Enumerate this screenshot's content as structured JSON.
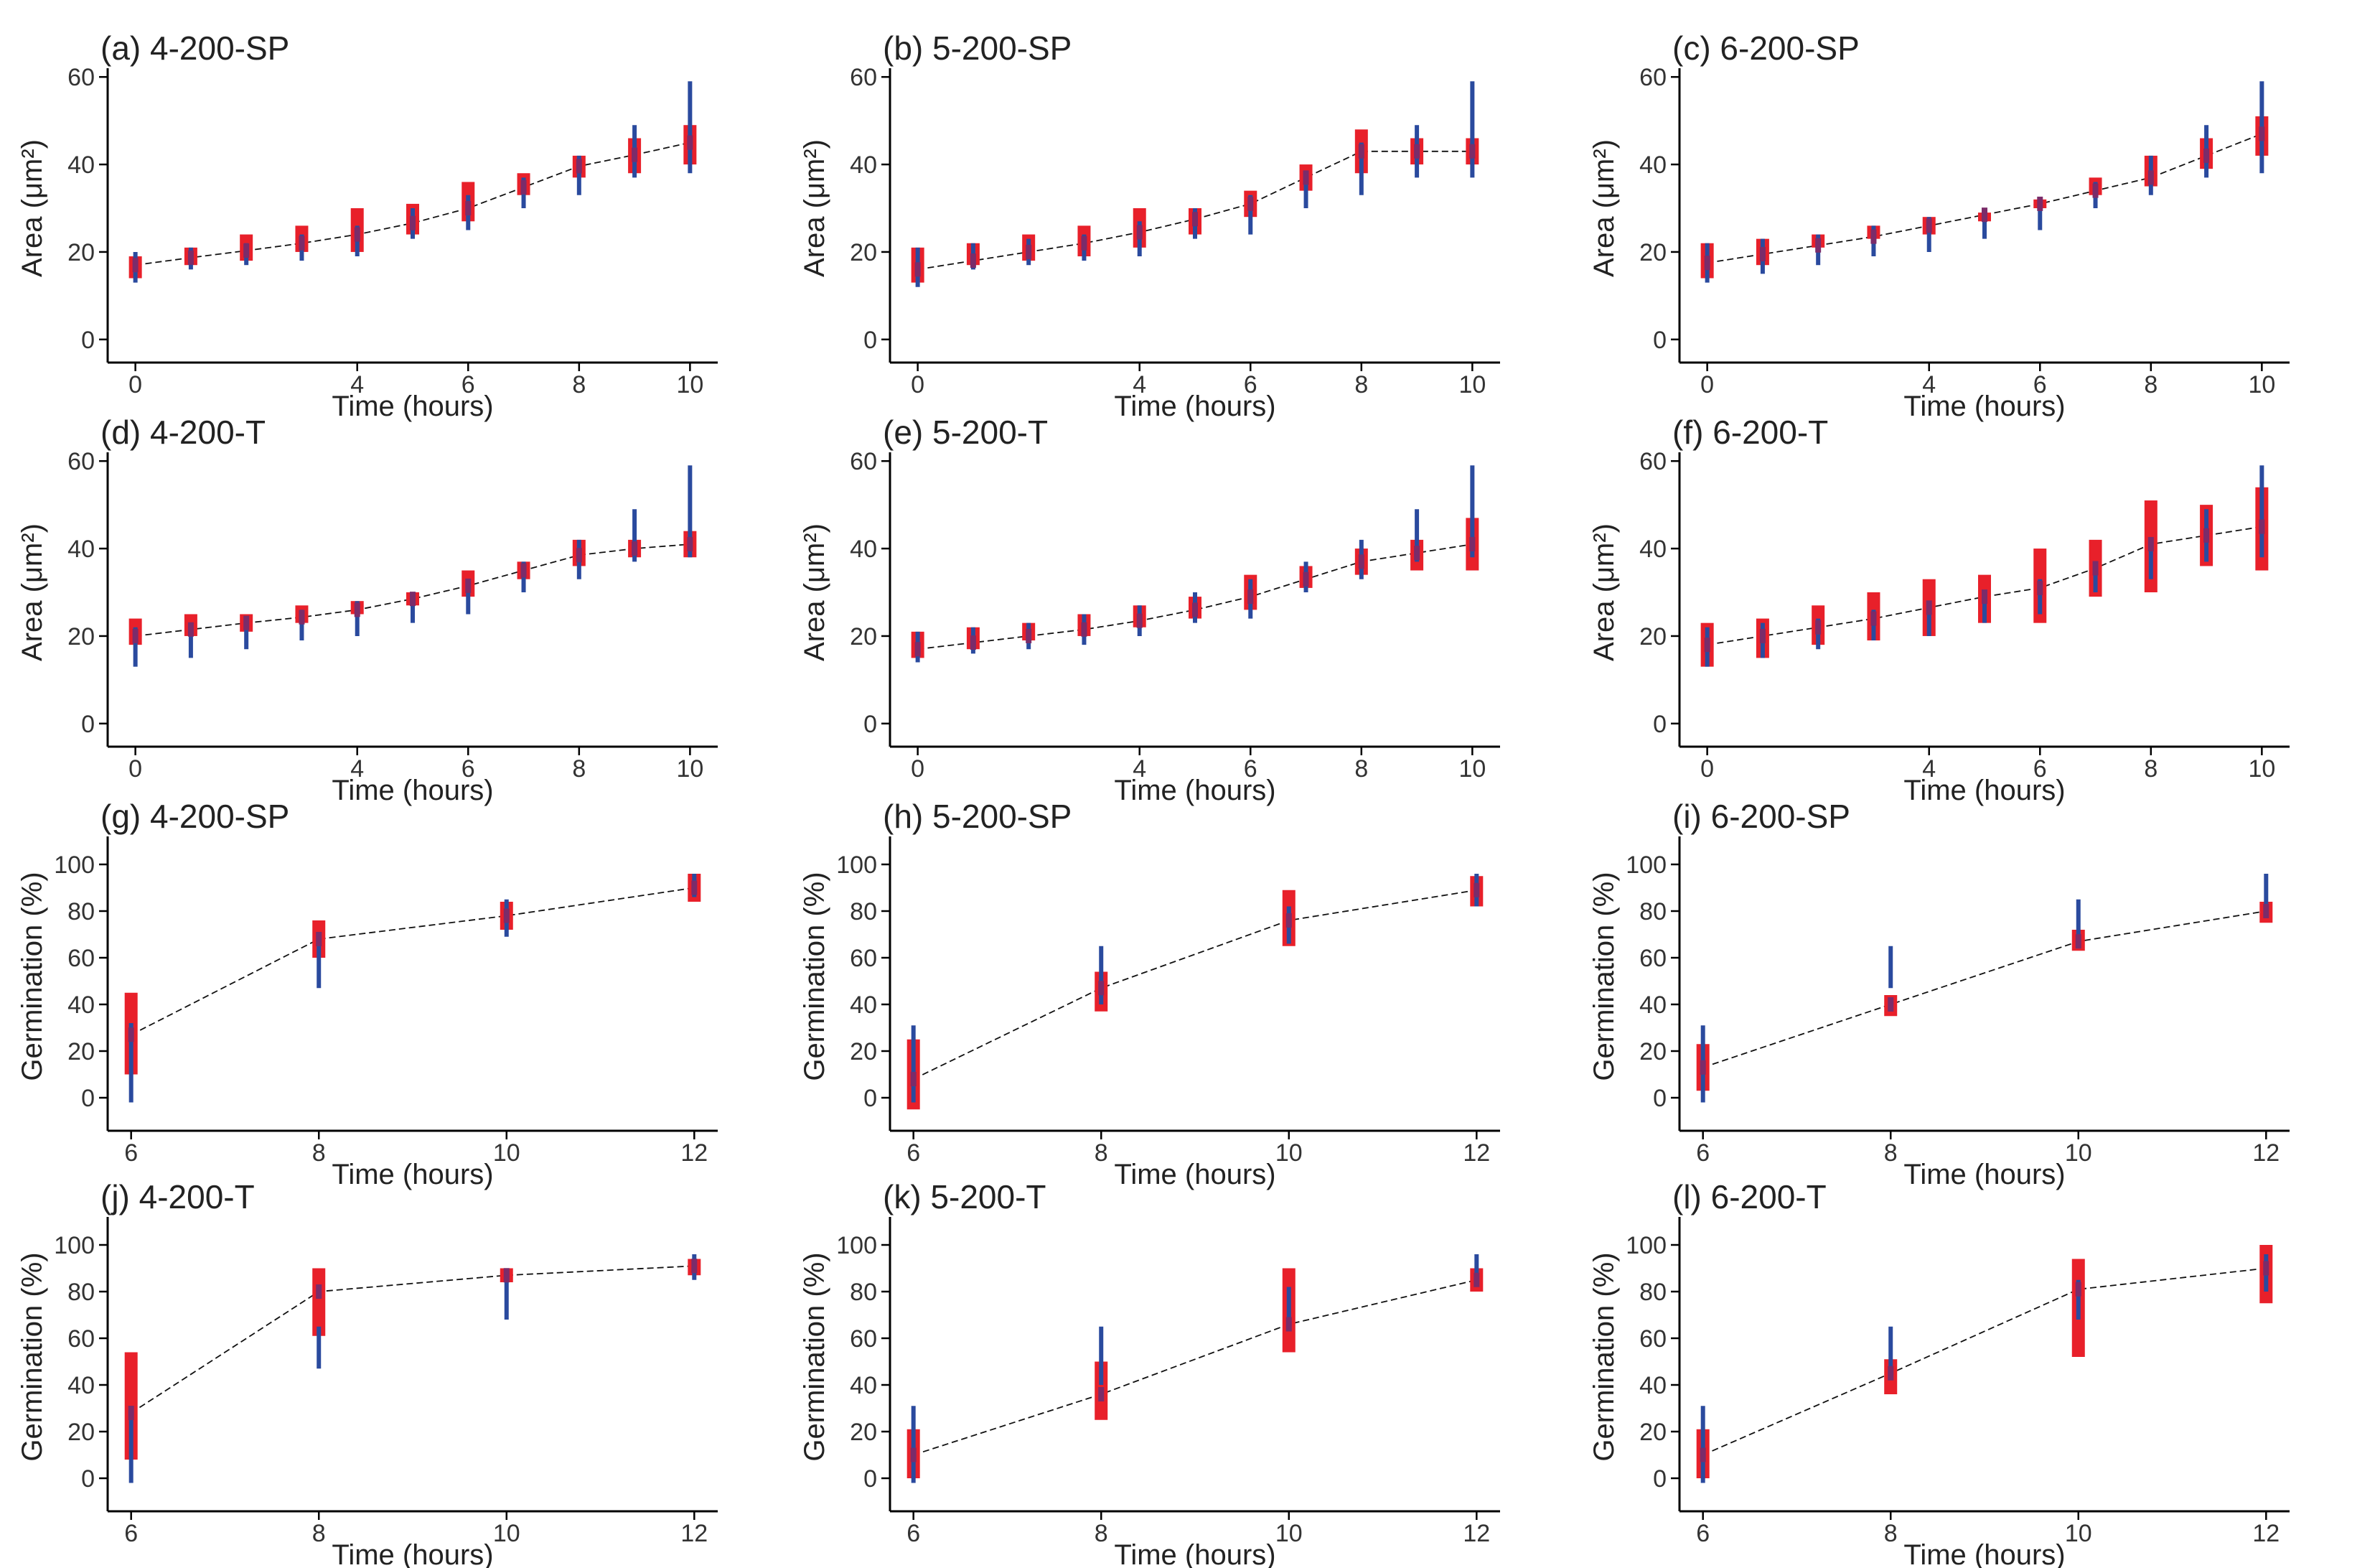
{
  "chart_data": [
    {
      "panel": "(a)",
      "title": "4-200-SP",
      "type": "line",
      "xlabel": "Time (hours)",
      "ylabel": "Area (μm²)",
      "xticks": [
        0,
        4,
        6,
        8,
        10
      ],
      "yticks": [
        0,
        20,
        40,
        60
      ],
      "xlim": [
        -0.5,
        10.5
      ],
      "ylim": [
        -2,
        62
      ],
      "x": [
        0,
        1,
        2,
        3,
        4,
        5,
        6,
        7,
        8,
        9,
        10
      ],
      "fit": [
        17,
        18.7,
        20.3,
        22,
        24,
        26.6,
        30,
        34.8,
        39.6,
        42.2,
        45
      ],
      "box": [
        [
          14,
          19
        ],
        [
          17,
          21
        ],
        [
          18,
          24
        ],
        [
          20,
          26
        ],
        [
          20,
          30
        ],
        [
          24,
          31
        ],
        [
          27,
          36
        ],
        [
          33,
          38
        ],
        [
          37,
          42
        ],
        [
          38,
          46
        ],
        [
          40,
          49
        ]
      ],
      "whisker": [
        [
          13,
          20
        ],
        [
          16,
          21
        ],
        [
          17,
          22
        ],
        [
          18,
          24
        ],
        [
          19,
          26
        ],
        [
          23,
          30
        ],
        [
          25,
          33
        ],
        [
          30,
          37
        ],
        [
          33,
          42
        ],
        [
          37,
          49
        ],
        [
          38,
          59
        ]
      ]
    },
    {
      "panel": "(b)",
      "title": "5-200-SP",
      "type": "line",
      "xlabel": "Time (hours)",
      "ylabel": "Area (μm²)",
      "xticks": [
        0,
        4,
        6,
        8,
        10
      ],
      "yticks": [
        0,
        20,
        40,
        60
      ],
      "xlim": [
        -0.5,
        10.5
      ],
      "ylim": [
        -2,
        62
      ],
      "x": [
        0,
        1,
        2,
        3,
        4,
        5,
        6,
        7,
        8,
        9,
        10
      ],
      "fit": [
        16,
        18,
        20,
        22,
        24.5,
        27.5,
        31,
        37,
        43,
        43,
        43
      ],
      "box": [
        [
          13,
          21
        ],
        [
          17,
          22
        ],
        [
          18,
          24
        ],
        [
          19,
          26
        ],
        [
          21,
          30
        ],
        [
          24,
          30
        ],
        [
          28,
          34
        ],
        [
          34,
          40
        ],
        [
          38,
          48
        ],
        [
          40,
          46
        ],
        [
          40,
          46
        ]
      ],
      "whisker": [
        [
          12,
          21
        ],
        [
          16,
          22
        ],
        [
          17,
          23
        ],
        [
          18,
          24
        ],
        [
          19,
          27
        ],
        [
          23,
          30
        ],
        [
          24,
          33
        ],
        [
          30,
          37
        ],
        [
          33,
          45
        ],
        [
          37,
          49
        ],
        [
          37,
          59
        ]
      ]
    },
    {
      "panel": "(c)",
      "title": "6-200-SP",
      "type": "line",
      "xlabel": "Time (hours)",
      "ylabel": "Area (μm²)",
      "xticks": [
        0,
        4,
        6,
        8,
        10
      ],
      "yticks": [
        0,
        20,
        40,
        60
      ],
      "xlim": [
        -0.5,
        10.5
      ],
      "ylim": [
        -2,
        62
      ],
      "x": [
        0,
        1,
        2,
        3,
        4,
        5,
        6,
        7,
        8,
        9,
        10
      ],
      "fit": [
        17.5,
        19.5,
        21.5,
        23.5,
        26,
        28.5,
        31,
        34,
        37,
        42,
        47
      ],
      "box": [
        [
          14,
          22
        ],
        [
          17,
          23
        ],
        [
          21,
          24
        ],
        [
          23,
          26
        ],
        [
          24,
          28
        ],
        [
          27,
          29
        ],
        [
          30,
          32
        ],
        [
          33,
          37
        ],
        [
          35,
          42
        ],
        [
          39,
          46
        ],
        [
          42,
          51
        ]
      ],
      "whisker": [
        [
          13,
          22
        ],
        [
          15,
          23
        ],
        [
          17,
          24
        ],
        [
          19,
          26
        ],
        [
          20,
          28
        ],
        [
          23,
          30
        ],
        [
          25,
          32
        ],
        [
          30,
          36
        ],
        [
          33,
          42
        ],
        [
          37,
          49
        ],
        [
          38,
          59
        ]
      ]
    },
    {
      "panel": "(d)",
      "title": "4-200-T",
      "type": "line",
      "xlabel": "Time (hours)",
      "ylabel": "Area (μm²)",
      "xticks": [
        0,
        4,
        6,
        8,
        10
      ],
      "yticks": [
        0,
        20,
        40,
        60
      ],
      "xlim": [
        -0.5,
        10.5
      ],
      "ylim": [
        -2,
        62
      ],
      "x": [
        0,
        1,
        2,
        3,
        4,
        5,
        6,
        7,
        8,
        9,
        10
      ],
      "fit": [
        20,
        21.5,
        23,
        24.3,
        26,
        28.5,
        31.5,
        35,
        38.5,
        40,
        41
      ],
      "box": [
        [
          18,
          24
        ],
        [
          20,
          25
        ],
        [
          21,
          25
        ],
        [
          23,
          27
        ],
        [
          25,
          28
        ],
        [
          27,
          30
        ],
        [
          29,
          35
        ],
        [
          33,
          37
        ],
        [
          36,
          42
        ],
        [
          38,
          42
        ],
        [
          38,
          44
        ]
      ],
      "whisker": [
        [
          13,
          22
        ],
        [
          15,
          23
        ],
        [
          17,
          24
        ],
        [
          19,
          26
        ],
        [
          20,
          28
        ],
        [
          23,
          30
        ],
        [
          25,
          33
        ],
        [
          30,
          37
        ],
        [
          33,
          42
        ],
        [
          37,
          49
        ],
        [
          38,
          59
        ]
      ]
    },
    {
      "panel": "(e)",
      "title": "5-200-T",
      "type": "line",
      "xlabel": "Time (hours)",
      "ylabel": "Area (μm²)",
      "xticks": [
        0,
        4,
        6,
        8,
        10
      ],
      "yticks": [
        0,
        20,
        40,
        60
      ],
      "xlim": [
        -0.5,
        10.5
      ],
      "ylim": [
        -2,
        62
      ],
      "x": [
        0,
        1,
        2,
        3,
        4,
        5,
        6,
        7,
        8,
        9,
        10
      ],
      "fit": [
        17,
        18.5,
        20,
        21.5,
        23.5,
        26,
        29,
        33,
        37,
        39,
        41
      ],
      "box": [
        [
          15,
          21
        ],
        [
          17,
          22
        ],
        [
          19,
          23
        ],
        [
          20,
          25
        ],
        [
          22,
          27
        ],
        [
          24,
          29
        ],
        [
          26,
          34
        ],
        [
          31,
          36
        ],
        [
          34,
          40
        ],
        [
          35,
          42
        ],
        [
          35,
          47
        ]
      ],
      "whisker": [
        [
          14,
          21
        ],
        [
          16,
          22
        ],
        [
          17,
          23
        ],
        [
          18,
          25
        ],
        [
          20,
          27
        ],
        [
          23,
          30
        ],
        [
          24,
          33
        ],
        [
          30,
          37
        ],
        [
          33,
          42
        ],
        [
          37,
          49
        ],
        [
          38,
          59
        ]
      ]
    },
    {
      "panel": "(f)",
      "title": "6-200-T",
      "type": "line",
      "xlabel": "Time (hours)",
      "ylabel": "Area (μm²)",
      "xticks": [
        0,
        4,
        6,
        8,
        10
      ],
      "yticks": [
        0,
        20,
        40,
        60
      ],
      "xlim": [
        -0.5,
        10.5
      ],
      "ylim": [
        -2,
        62
      ],
      "x": [
        0,
        1,
        2,
        3,
        4,
        5,
        6,
        7,
        8,
        9,
        10
      ],
      "fit": [
        18,
        20,
        22,
        24,
        26.5,
        29,
        31,
        35.5,
        41,
        43,
        45
      ],
      "box": [
        [
          13,
          23
        ],
        [
          15,
          24
        ],
        [
          18,
          27
        ],
        [
          19,
          30
        ],
        [
          20,
          33
        ],
        [
          23,
          34
        ],
        [
          23,
          40
        ],
        [
          29,
          42
        ],
        [
          30,
          51
        ],
        [
          36,
          50
        ],
        [
          35,
          54
        ]
      ],
      "whisker": [
        [
          13,
          22
        ],
        [
          15,
          23
        ],
        [
          17,
          24
        ],
        [
          19,
          26
        ],
        [
          20,
          28
        ],
        [
          23,
          30
        ],
        [
          25,
          33
        ],
        [
          30,
          37
        ],
        [
          33,
          42
        ],
        [
          37,
          49
        ],
        [
          38,
          59
        ]
      ]
    },
    {
      "panel": "(g)",
      "title": "4-200-SP",
      "type": "line",
      "xlabel": "Time (hours)",
      "ylabel": "Germination (%)",
      "xticks": [
        6,
        8,
        10,
        12
      ],
      "yticks": [
        0,
        20,
        40,
        60,
        80,
        100
      ],
      "xlim": [
        5.75,
        12.25
      ],
      "ylim": [
        -8,
        112
      ],
      "x": [
        6,
        8,
        10,
        12
      ],
      "fit": [
        27,
        68,
        78,
        90
      ],
      "box": [
        [
          10,
          45
        ],
        [
          60,
          76
        ],
        [
          72,
          84
        ],
        [
          84,
          96
        ]
      ],
      "whisker": [
        [
          -2,
          32
        ],
        [
          47,
          66
        ],
        [
          69,
          85
        ],
        [
          86,
          96
        ]
      ]
    },
    {
      "panel": "(h)",
      "title": "5-200-SP",
      "type": "line",
      "xlabel": "Time (hours)",
      "ylabel": "Germination (%)",
      "xticks": [
        6,
        8,
        10,
        12
      ],
      "yticks": [
        0,
        20,
        40,
        60,
        80,
        100
      ],
      "xlim": [
        5.75,
        12.25
      ],
      "ylim": [
        -8,
        112
      ],
      "x": [
        6,
        8,
        10,
        12
      ],
      "fit": [
        8,
        47,
        76,
        89
      ],
      "box": [
        [
          -5,
          25
        ],
        [
          37,
          54
        ],
        [
          65,
          89
        ],
        [
          82,
          95
        ]
      ],
      "whisker": [
        [
          -2,
          31
        ],
        [
          40,
          65
        ],
        [
          66,
          82
        ],
        [
          82,
          96
        ]
      ]
    },
    {
      "panel": "(i)",
      "title": "6-200-SP",
      "type": "line",
      "xlabel": "Time (hours)",
      "ylabel": "Germination (%)",
      "xticks": [
        6,
        8,
        10,
        12
      ],
      "yticks": [
        0,
        20,
        40,
        60,
        80,
        100
      ],
      "xlim": [
        5.75,
        12.25
      ],
      "ylim": [
        -8,
        112
      ],
      "x": [
        6,
        8,
        10,
        12
      ],
      "fit": [
        13,
        40,
        67,
        80
      ],
      "box": [
        [
          3,
          23
        ],
        [
          35,
          44
        ],
        [
          63,
          72
        ],
        [
          75,
          84
        ]
      ],
      "whisker": [
        [
          -2,
          31
        ],
        [
          47,
          65
        ],
        [
          68,
          85
        ],
        [
          79,
          96
        ]
      ]
    },
    {
      "panel": "(j)",
      "title": "4-200-T",
      "type": "line",
      "xlabel": "Time (hours)",
      "ylabel": "Germination (%)",
      "xticks": [
        6,
        8,
        10,
        12
      ],
      "yticks": [
        0,
        20,
        40,
        60,
        80,
        100
      ],
      "xlim": [
        5.75,
        12.25
      ],
      "ylim": [
        -8,
        112
      ],
      "x": [
        6,
        8,
        10,
        12
      ],
      "fit": [
        28,
        80,
        87,
        91
      ],
      "box": [
        [
          8,
          54
        ],
        [
          61,
          90
        ],
        [
          84,
          90
        ],
        [
          87,
          94
        ]
      ],
      "whisker": [
        [
          -2,
          31
        ],
        [
          47,
          65
        ],
        [
          68,
          85
        ],
        [
          85,
          96
        ]
      ]
    },
    {
      "panel": "(k)",
      "title": "5-200-T",
      "type": "line",
      "xlabel": "Time (hours)",
      "ylabel": "Germination (%)",
      "xticks": [
        6,
        8,
        10,
        12
      ],
      "yticks": [
        0,
        20,
        40,
        60,
        80,
        100
      ],
      "xlim": [
        5.75,
        12.25
      ],
      "ylim": [
        -8,
        112
      ],
      "x": [
        6,
        8,
        10,
        12
      ],
      "fit": [
        10,
        36,
        66,
        85
      ],
      "box": [
        [
          0,
          21
        ],
        [
          25,
          50
        ],
        [
          54,
          90
        ],
        [
          80,
          90
        ]
      ],
      "whisker": [
        [
          -2,
          31
        ],
        [
          40,
          65
        ],
        [
          66,
          82
        ],
        [
          82,
          96
        ]
      ]
    },
    {
      "panel": "(l)",
      "title": "6-200-T",
      "type": "line",
      "xlabel": "Time (hours)",
      "ylabel": "Germination (%)",
      "xticks": [
        6,
        8,
        10,
        12
      ],
      "yticks": [
        0,
        20,
        40,
        60,
        80,
        100
      ],
      "xlim": [
        5.75,
        12.25
      ],
      "ylim": [
        -8,
        112
      ],
      "x": [
        6,
        8,
        10,
        12
      ],
      "fit": [
        10,
        45,
        81,
        90
      ],
      "box": [
        [
          0,
          21
        ],
        [
          36,
          51
        ],
        [
          52,
          94
        ],
        [
          75,
          100
        ]
      ],
      "whisker": [
        [
          -2,
          31
        ],
        [
          47,
          65
        ],
        [
          68,
          85
        ],
        [
          80,
          96
        ]
      ]
    }
  ]
}
